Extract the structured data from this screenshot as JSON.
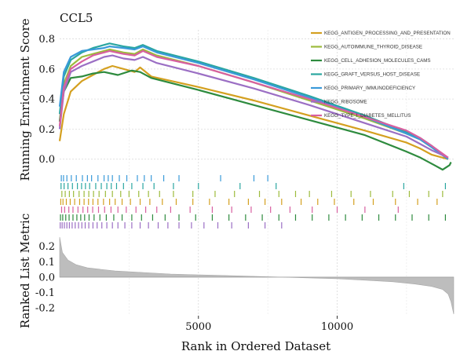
{
  "chart_data": {
    "type": "line",
    "title": "CCL5",
    "xlabel": "Rank in Ordered Dataset",
    "x_range": [
      0,
      14200
    ],
    "x_ticks": [
      5000,
      10000
    ],
    "panels": [
      {
        "ylabel": "Running Enrichment Score",
        "ylim": [
          -0.08,
          0.85
        ],
        "y_ticks": [
          0.0,
          0.2,
          0.4,
          0.6,
          0.8
        ],
        "grid": true
      },
      {
        "ylabel": "",
        "type": "hits"
      },
      {
        "ylabel": "Ranked List Metric",
        "ylim": [
          -0.25,
          0.3
        ],
        "y_ticks": [
          -0.2,
          -0.1,
          0.0,
          0.1,
          0.2
        ],
        "type": "area"
      }
    ],
    "legend_position": "top-right",
    "series": [
      {
        "name": "KEGG_ANTIGEN_PROCESSING_AND_PRESENTATION",
        "color": "#D4A020",
        "points": [
          [
            0,
            0.12
          ],
          [
            150,
            0.3
          ],
          [
            400,
            0.45
          ],
          [
            800,
            0.52
          ],
          [
            1200,
            0.56
          ],
          [
            1600,
            0.6
          ],
          [
            1900,
            0.62
          ],
          [
            2300,
            0.6
          ],
          [
            2700,
            0.58
          ],
          [
            2900,
            0.61
          ],
          [
            3300,
            0.55
          ],
          [
            5000,
            0.48
          ],
          [
            7000,
            0.39
          ],
          [
            9000,
            0.29
          ],
          [
            11000,
            0.19
          ],
          [
            12500,
            0.11
          ],
          [
            13000,
            0.07
          ],
          [
            13400,
            0.03
          ],
          [
            14000,
            0.0
          ]
        ]
      },
      {
        "name": "KEGG_AUTOIMMUNE_THYROID_DISEASE",
        "color": "#9DBB3C",
        "points": [
          [
            0,
            0.25
          ],
          [
            150,
            0.5
          ],
          [
            400,
            0.62
          ],
          [
            800,
            0.68
          ],
          [
            1200,
            0.7
          ],
          [
            1600,
            0.72
          ],
          [
            1800,
            0.73
          ],
          [
            2300,
            0.71
          ],
          [
            2700,
            0.7
          ],
          [
            3000,
            0.73
          ],
          [
            3500,
            0.69
          ],
          [
            5000,
            0.62
          ],
          [
            7000,
            0.51
          ],
          [
            9000,
            0.39
          ],
          [
            11000,
            0.27
          ],
          [
            12500,
            0.17
          ],
          [
            13000,
            0.13
          ],
          [
            13400,
            0.08
          ],
          [
            14000,
            0.0
          ]
        ]
      },
      {
        "name": "KEGG_CELL_ADHESION_MOLECULES_CAMS",
        "color": "#2E8B3E",
        "points": [
          [
            0,
            0.25
          ],
          [
            150,
            0.45
          ],
          [
            400,
            0.54
          ],
          [
            800,
            0.55
          ],
          [
            1200,
            0.57
          ],
          [
            1600,
            0.58
          ],
          [
            2100,
            0.56
          ],
          [
            2600,
            0.59
          ],
          [
            2900,
            0.58
          ],
          [
            3300,
            0.54
          ],
          [
            5000,
            0.46
          ],
          [
            7000,
            0.36
          ],
          [
            9000,
            0.26
          ],
          [
            11000,
            0.16
          ],
          [
            12500,
            0.05
          ],
          [
            13000,
            0.01
          ],
          [
            13500,
            -0.04
          ],
          [
            13800,
            -0.07
          ],
          [
            14050,
            -0.04
          ],
          [
            14100,
            -0.02
          ]
        ]
      },
      {
        "name": "KEGG_GRAFT_VERSUS_HOST_DISEASE",
        "color": "#2AA6A0",
        "points": [
          [
            0,
            0.3
          ],
          [
            150,
            0.55
          ],
          [
            400,
            0.66
          ],
          [
            800,
            0.71
          ],
          [
            1200,
            0.74
          ],
          [
            1600,
            0.76
          ],
          [
            1800,
            0.77
          ],
          [
            2300,
            0.75
          ],
          [
            2700,
            0.74
          ],
          [
            3000,
            0.76
          ],
          [
            3500,
            0.72
          ],
          [
            5000,
            0.65
          ],
          [
            7000,
            0.54
          ],
          [
            9000,
            0.42
          ],
          [
            11000,
            0.29
          ],
          [
            12500,
            0.18
          ],
          [
            13000,
            0.14
          ],
          [
            13400,
            0.09
          ],
          [
            14000,
            0.0
          ]
        ]
      },
      {
        "name": "KEGG_PRIMARY_IMMUNODEFICIENCY",
        "color": "#3A9AD9",
        "points": [
          [
            0,
            0.35
          ],
          [
            150,
            0.58
          ],
          [
            400,
            0.68
          ],
          [
            800,
            0.72
          ],
          [
            1200,
            0.73
          ],
          [
            1600,
            0.74
          ],
          [
            1800,
            0.75
          ],
          [
            2300,
            0.74
          ],
          [
            2700,
            0.73
          ],
          [
            3000,
            0.75
          ],
          [
            3500,
            0.71
          ],
          [
            5000,
            0.64
          ],
          [
            7000,
            0.53
          ],
          [
            9000,
            0.41
          ],
          [
            11000,
            0.28
          ],
          [
            12500,
            0.17
          ],
          [
            13000,
            0.13
          ],
          [
            13400,
            0.08
          ],
          [
            14000,
            0.0
          ]
        ]
      },
      {
        "name": "KEGG_RIBOSOME",
        "color": "#9B6FC4",
        "points": [
          [
            0,
            0.2
          ],
          [
            150,
            0.45
          ],
          [
            400,
            0.58
          ],
          [
            800,
            0.62
          ],
          [
            1200,
            0.65
          ],
          [
            1600,
            0.68
          ],
          [
            1900,
            0.69
          ],
          [
            2300,
            0.67
          ],
          [
            2700,
            0.66
          ],
          [
            3000,
            0.68
          ],
          [
            3500,
            0.64
          ],
          [
            5000,
            0.57
          ],
          [
            7000,
            0.47
          ],
          [
            9000,
            0.36
          ],
          [
            11000,
            0.24
          ],
          [
            12500,
            0.15
          ],
          [
            13000,
            0.1
          ],
          [
            13400,
            0.06
          ],
          [
            14000,
            0.01
          ]
        ]
      },
      {
        "name": "KEGG_TYPE_I_DIABETES_MELLITUS",
        "color": "#D85FA0",
        "points": [
          [
            0,
            0.22
          ],
          [
            150,
            0.48
          ],
          [
            400,
            0.6
          ],
          [
            800,
            0.65
          ],
          [
            1200,
            0.69
          ],
          [
            1600,
            0.71
          ],
          [
            1800,
            0.72
          ],
          [
            2300,
            0.7
          ],
          [
            2700,
            0.69
          ],
          [
            3000,
            0.72
          ],
          [
            3500,
            0.68
          ],
          [
            5000,
            0.62
          ],
          [
            7000,
            0.51
          ],
          [
            9000,
            0.4
          ],
          [
            11000,
            0.28
          ],
          [
            12500,
            0.19
          ],
          [
            13000,
            0.14
          ],
          [
            13400,
            0.09
          ],
          [
            14000,
            0.01
          ]
        ]
      }
    ],
    "hits": [
      {
        "series": "KEGG_PRIMARY_IMMUNODEFICIENCY",
        "ranks": [
          60,
          140,
          260,
          420,
          600,
          820,
          1000,
          1150,
          1380,
          1600,
          1750,
          1900,
          2150,
          2420,
          2800,
          3050,
          3300,
          3750,
          4300,
          5800,
          7000,
          7500
        ]
      },
      {
        "series": "KEGG_GRAFT_VERSUS_HOST_DISEASE",
        "ranks": [
          50,
          160,
          300,
          460,
          640,
          790,
          930,
          1080,
          1300,
          1500,
          1700,
          1860,
          2050,
          2300,
          2600,
          3000,
          3400,
          4100,
          5000,
          6500,
          7800,
          12400,
          13900
        ]
      },
      {
        "series": "KEGG_AUTOIMMUNE_THYROID_DISEASE",
        "ranks": [
          80,
          200,
          350,
          500,
          700,
          880,
          1050,
          1220,
          1420,
          1650,
          1900,
          2200,
          2500,
          2850,
          3200,
          3600,
          4100,
          4800,
          5600,
          6300,
          7200,
          7900,
          8500,
          9000,
          9800,
          10500,
          11200,
          12000,
          12600,
          13300,
          13800
        ]
      },
      {
        "series": "KEGG_ANTIGEN_PROCESSING_AND_PRESENTATION",
        "ranks": [
          40,
          120,
          240,
          380,
          540,
          720,
          880,
          1040,
          1200,
          1380,
          1580,
          1800,
          2000,
          2250,
          2550,
          2900,
          3250,
          3700,
          4200,
          4800,
          5400,
          6100,
          6800,
          7400,
          8000,
          8700,
          9300,
          9900,
          10600,
          11300,
          12100,
          12900,
          13600
        ]
      },
      {
        "series": "KEGG_TYPE_I_DIABETES_MELLITUS",
        "ranks": [
          70,
          180,
          330,
          480,
          660,
          840,
          1010,
          1190,
          1400,
          1620,
          1850,
          2100,
          2400,
          2750,
          3100,
          3500,
          4000,
          4700,
          5500,
          6200,
          6900,
          7600,
          8300,
          9100,
          10000,
          11000,
          12200
        ]
      },
      {
        "series": "KEGG_CELL_ADHESION_MOLECULES_CAMS",
        "ranks": [
          30,
          110,
          220,
          340,
          480,
          620,
          760,
          900,
          1060,
          1240,
          1450,
          1680,
          1950,
          2250,
          2600,
          2950,
          3350,
          3800,
          4300,
          4900,
          5500,
          6100,
          6700,
          7300,
          7900,
          8500,
          9100,
          9700,
          10300,
          10900,
          11500,
          12100,
          12700,
          13300,
          13900
        ]
      },
      {
        "series": "KEGG_RIBOSOME",
        "ranks": [
          20,
          90,
          170,
          260,
          350,
          450,
          560,
          680,
          800,
          920,
          1050,
          1200,
          1350,
          1520,
          1700,
          1900,
          2100,
          2350,
          2600,
          2900,
          3200,
          3550,
          3900,
          4300,
          4750,
          5200,
          5700,
          6200,
          6800,
          7400,
          8000
        ]
      }
    ],
    "ranked_metric": {
      "x": [
        0,
        100,
        300,
        600,
        1000,
        2000,
        3000,
        4000,
        5000,
        6000,
        7000,
        8000,
        9000,
        10000,
        11000,
        12000,
        12800,
        13400,
        13800,
        14000,
        14100,
        14200
      ],
      "y": [
        0.26,
        0.16,
        0.11,
        0.08,
        0.06,
        0.04,
        0.03,
        0.02,
        0.015,
        0.01,
        0.005,
        0.0,
        -0.005,
        -0.01,
        -0.02,
        -0.03,
        -0.045,
        -0.06,
        -0.08,
        -0.11,
        -0.16,
        -0.24
      ]
    }
  }
}
